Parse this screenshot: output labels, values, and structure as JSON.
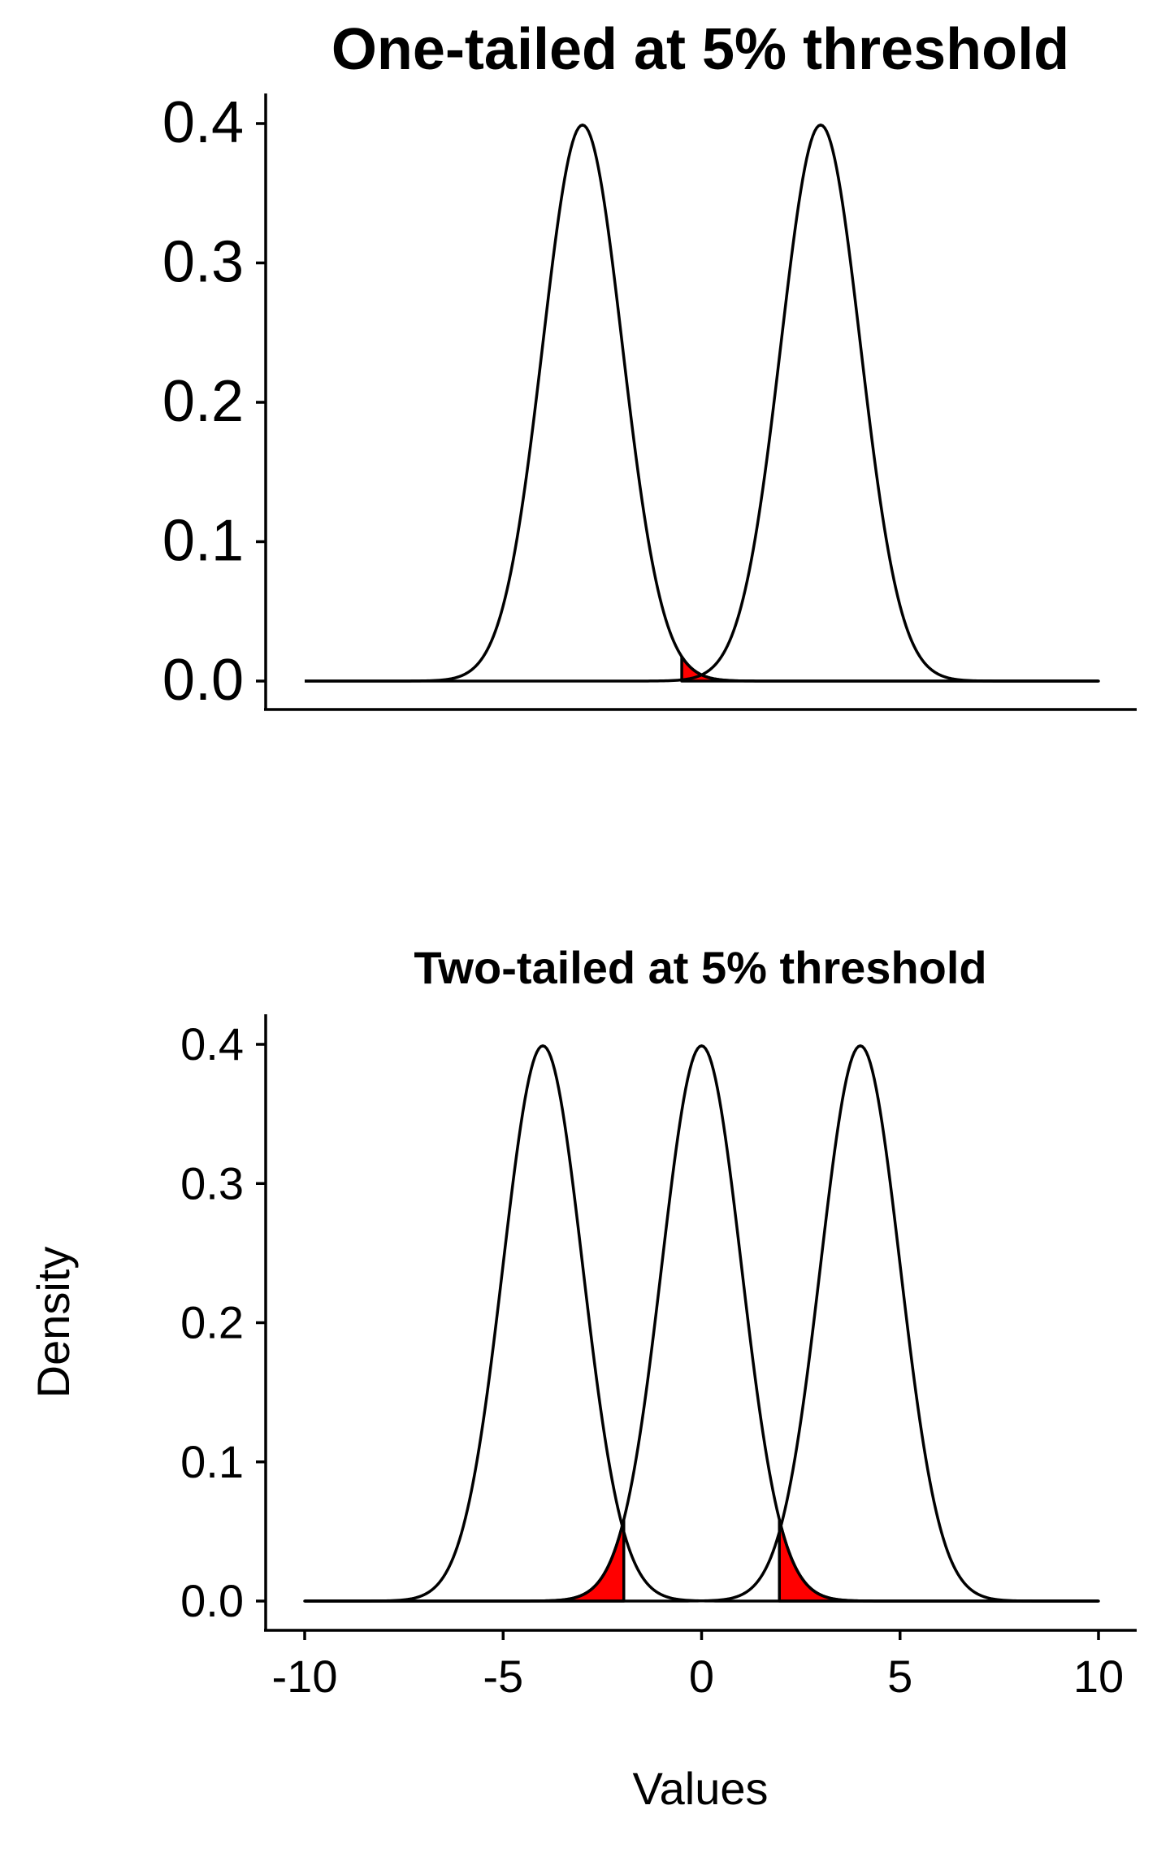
{
  "chart_data": [
    {
      "type": "line",
      "title": "One-tailed at 5% threshold",
      "xlabel": "",
      "ylabel": "",
      "xlim": [
        -10,
        10
      ],
      "ylim": [
        0,
        0.4
      ],
      "x_ticks": [],
      "y_ticks": [
        "0.0",
        "0.1",
        "0.2",
        "0.3",
        "0.4"
      ],
      "grid": false,
      "series": [
        {
          "distribution": "normal",
          "mean": -3,
          "sd": 1
        },
        {
          "distribution": "normal",
          "mean": 3,
          "sd": 1
        }
      ],
      "shaded_regions": [
        {
          "under_mean": -3,
          "from": -0.5,
          "to": 10,
          "color": "#ff0000"
        }
      ]
    },
    {
      "type": "line",
      "title": "Two-tailed at 5% threshold",
      "xlabel": "Values",
      "ylabel": "Density",
      "xlim": [
        -10,
        10
      ],
      "ylim": [
        0,
        0.4
      ],
      "x_ticks": [
        "-10",
        "-5",
        "0",
        "5",
        "10"
      ],
      "y_ticks": [
        "0.0",
        "0.1",
        "0.2",
        "0.3",
        "0.4"
      ],
      "grid": false,
      "series": [
        {
          "distribution": "normal",
          "mean": -4,
          "sd": 1
        },
        {
          "distribution": "normal",
          "mean": 0,
          "sd": 1
        },
        {
          "distribution": "normal",
          "mean": 4,
          "sd": 1
        }
      ],
      "shaded_regions": [
        {
          "under_mean": 0,
          "from": -10,
          "to": -1.96,
          "color": "#ff0000"
        },
        {
          "under_mean": 0,
          "from": 1.96,
          "to": 10,
          "color": "#ff0000"
        }
      ]
    }
  ]
}
